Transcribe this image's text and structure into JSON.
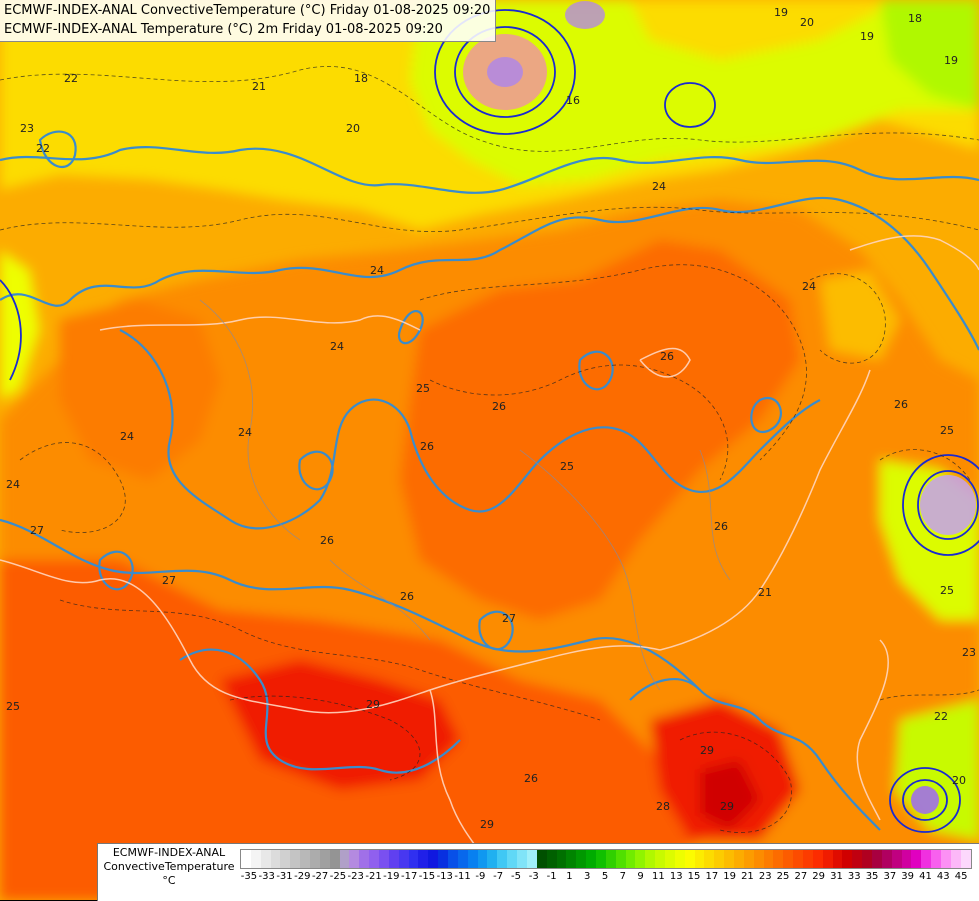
{
  "header": {
    "line1": "ECMWF-INDEX-ANAL ConvectiveTemperature (°C) Friday 01-08-2025 09:20",
    "line2": "ECMWF-INDEX-ANAL Temperature (°C) 2m Friday 01-08-2025 09:20"
  },
  "legend": {
    "line1": "ECMWF-INDEX-ANAL",
    "line2": "ConvectiveTemperature",
    "line3": "°C",
    "ticks": [
      "-35",
      "-33",
      "-31",
      "-29",
      "-27",
      "-25",
      "-23",
      "-21",
      "-19",
      "-17",
      "-15",
      "-13",
      "-11",
      "-9",
      "-7",
      "-5",
      "-3",
      "-1",
      "1",
      "3",
      "5",
      "7",
      "9",
      "11",
      "13",
      "15",
      "17",
      "19",
      "21",
      "23",
      "25",
      "27",
      "29",
      "31",
      "33",
      "35",
      "37",
      "39",
      "41",
      "43",
      "45"
    ],
    "colors": [
      "#ffffff",
      "#f4f4f4",
      "#e8e8e8",
      "#dcdcdc",
      "#d0d0d0",
      "#c4c4c4",
      "#b8b8b8",
      "#acacac",
      "#a0a0a0",
      "#949494",
      "#b0a0c8",
      "#b48ae0",
      "#a070e8",
      "#9060ee",
      "#7a50f0",
      "#6040f0",
      "#4838f0",
      "#3030f0",
      "#2020e8",
      "#1018e0",
      "#0830e0",
      "#0850e8",
      "#0868ec",
      "#0880f0",
      "#1098f0",
      "#20b0f0",
      "#40c8f4",
      "#60d8f6",
      "#80e4f8",
      "#a0f0fa",
      "#005000",
      "#006000",
      "#007000",
      "#008400",
      "#009800",
      "#00ac00",
      "#10c000",
      "#30d000",
      "#50e000",
      "#70ec00",
      "#90f400",
      "#b0f800",
      "#c8fa00",
      "#dcfc00",
      "#eefe00",
      "#fcfc00",
      "#fcec00",
      "#fcdc00",
      "#fccc00",
      "#fcbc00",
      "#fcac00",
      "#fc9c00",
      "#fc8c00",
      "#fc7c00",
      "#fc6c00",
      "#fc5c00",
      "#fc4c00",
      "#fc3c00",
      "#fc2c00",
      "#f01c00",
      "#e00c00",
      "#d00000",
      "#c00010",
      "#b00020",
      "#a80040",
      "#b00060",
      "#c00080",
      "#d000a0",
      "#e000c0",
      "#f030e0",
      "#f860ee",
      "#fc90f4",
      "#fcb8f8",
      "#fcd8fc"
    ]
  },
  "map": {
    "isotherm_labels": [
      "19",
      "20",
      "18",
      "19",
      "22",
      "21",
      "23",
      "22",
      "18",
      "20",
      "16",
      "24",
      "24",
      "24",
      "25",
      "26",
      "26",
      "24",
      "26",
      "25",
      "26",
      "27",
      "27",
      "27",
      "26",
      "26",
      "29",
      "26",
      "29",
      "29",
      "28",
      "29",
      "26",
      "21",
      "24",
      "23",
      "22",
      "20",
      "25",
      "24",
      "19",
      "25",
      "25",
      "24"
    ]
  },
  "colors": {
    "convective_fill_main": "#fc8c00",
    "convective_fill_warm": "#fc5c00",
    "convective_fill_hot": "#f01c00",
    "temperature_contour": "#3a8ccc",
    "border_line": "#ffd6c0"
  }
}
